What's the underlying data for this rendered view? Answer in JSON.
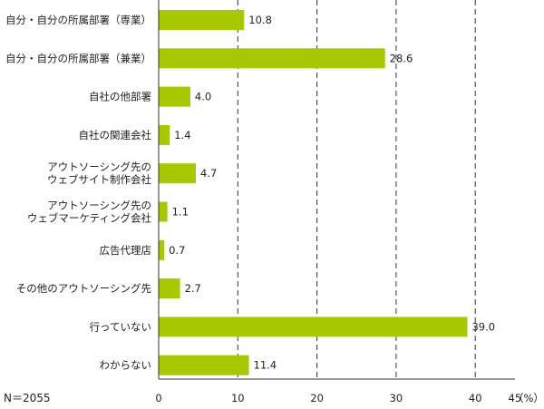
{
  "chart_data": {
    "type": "bar",
    "orientation": "horizontal",
    "categories": [
      [
        "自分・自分の所属部署（専業）"
      ],
      [
        "自分・自分の所属部署（兼業）"
      ],
      [
        "自社の他部署"
      ],
      [
        "自社の関連会社"
      ],
      [
        "アウトソーシング先の",
        "ウェブサイト制作会社"
      ],
      [
        "アウトソーシング先の",
        "ウェブマーケティング会社"
      ],
      [
        "広告代理店"
      ],
      [
        "その他のアウトソーシング先"
      ],
      [
        "行っていない"
      ],
      [
        "わからない"
      ]
    ],
    "values": [
      10.8,
      28.6,
      4.0,
      1.4,
      4.7,
      1.1,
      0.7,
      2.7,
      39.0,
      11.4
    ],
    "value_labels": [
      "10.8",
      "28.6",
      "4.0",
      "1.4",
      "4.7",
      "1.1",
      "0.7",
      "2.7",
      "39.0",
      "11.4"
    ],
    "xlim": [
      0,
      45
    ],
    "xticks": [
      0,
      10,
      20,
      30,
      40,
      45
    ],
    "xtick_labels": [
      "0",
      "10",
      "20",
      "30",
      "40",
      "45"
    ],
    "unit_label": "（%）",
    "sample_note": "N＝2055",
    "grid": "dashed vertical at 10, 20, 30, 40",
    "bar_color": "#a8c800",
    "axis_color": "#333333"
  }
}
